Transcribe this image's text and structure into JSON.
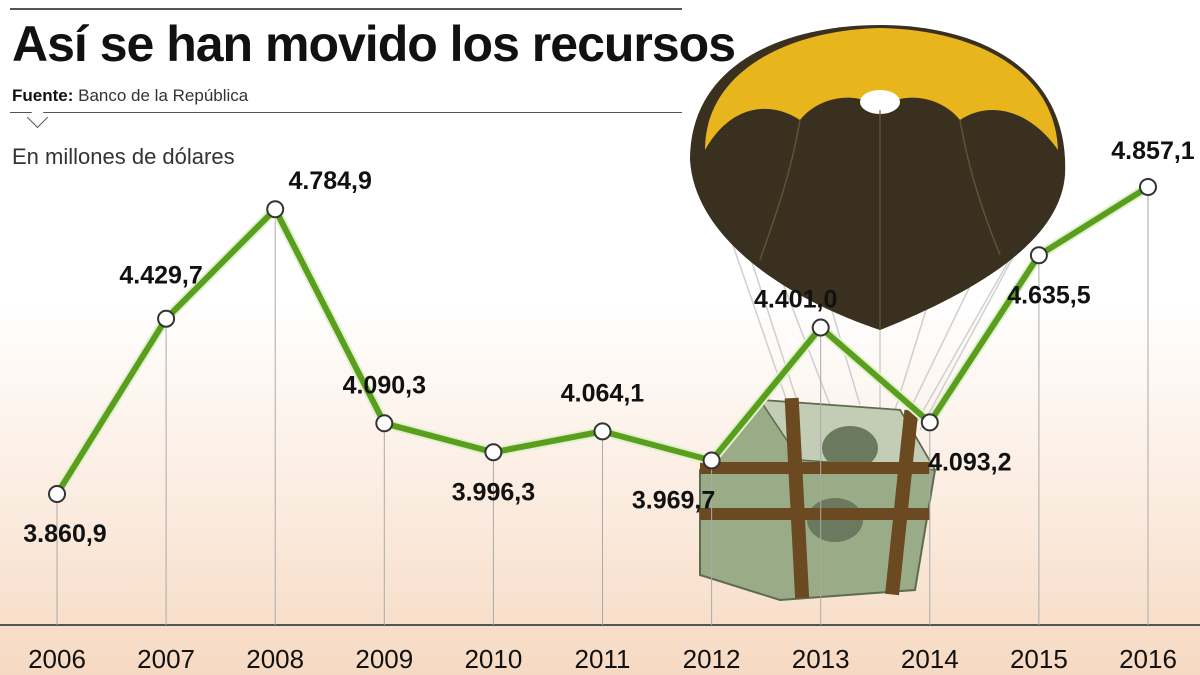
{
  "header": {
    "title": "Así se han movido los recursos",
    "source_label": "Fuente:",
    "source_value": "Banco de la República",
    "unit": "En millones de dólares"
  },
  "colors": {
    "line": "#5a9e1e",
    "line_outline": "#e2f0d0",
    "marker_fill": "#ffffff",
    "marker_stroke": "#333333",
    "parachute_gold": "#e8b51c",
    "parachute_dark": "#3a3020",
    "money_green": "#9aab88",
    "strap_brown": "#6b4a22"
  },
  "illustration": {
    "parachute_icon": "parachute-with-money-bundle-icon"
  },
  "chart_data": {
    "type": "line",
    "title": "Así se han movido los recursos",
    "ylabel": "En millones de dólares",
    "ylim": [
      3800,
      5000
    ],
    "grid": false,
    "categories": [
      "2006",
      "2007",
      "2008",
      "2009",
      "2010",
      "2011",
      "2012",
      "2013",
      "2014",
      "2015",
      "2016"
    ],
    "series": [
      {
        "values": [
          3860.9,
          4429.7,
          4784.9,
          4090.3,
          3996.3,
          4064.1,
          3969.7,
          4401.0,
          4093.2,
          4635.5,
          4857.1
        ],
        "labels": [
          "3.860,9",
          "4.429,7",
          "4.784,9",
          "4.090,3",
          "3.996,3",
          "4.064,1",
          "3.969,7",
          "4.401,0",
          "4.093,2",
          "4.635,5",
          "4.857,1"
        ]
      }
    ]
  }
}
